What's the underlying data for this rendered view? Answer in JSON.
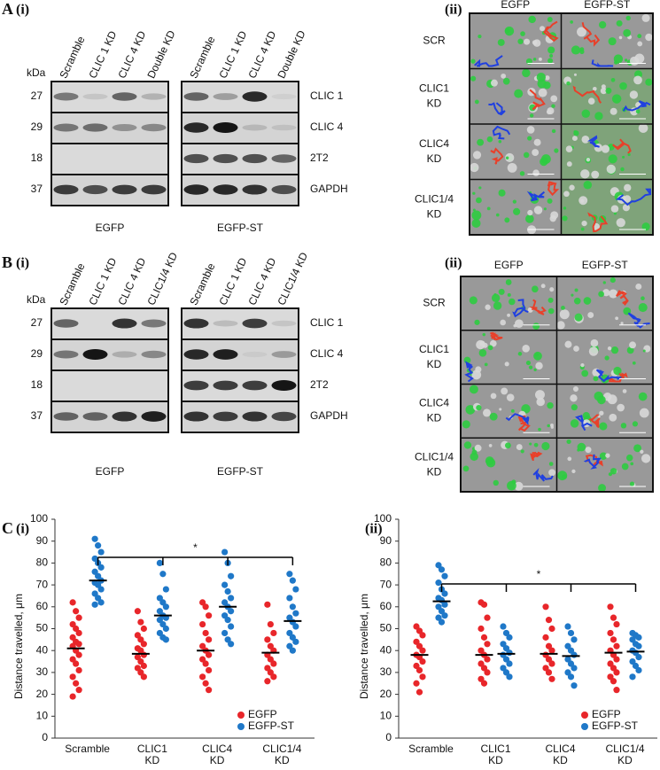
{
  "panels": {
    "A": {
      "label": "A",
      "i": "(i)",
      "ii": "(ii)",
      "blot": {
        "kda": "kDa",
        "markers": [
          27,
          29,
          18,
          37
        ],
        "proteins": [
          "CLIC 1",
          "CLIC 4",
          "2T2",
          "GAPDH"
        ],
        "groups": [
          {
            "name": "EGFP",
            "lanes": [
              "Scramble",
              "CLIC 1 KD",
              "CLIC 4 KD",
              "Double KD"
            ]
          },
          {
            "name": "EGFP-ST",
            "lanes": [
              "Scramble",
              "CLIC 1 KD",
              "CLIC 4 KD",
              "Double KD"
            ]
          }
        ]
      },
      "micrographs": {
        "columns": [
          "EGFP",
          "EGFP-ST"
        ],
        "rows": [
          [
            "SCR"
          ],
          [
            "CLIC1",
            "KD"
          ],
          [
            "CLIC4",
            "KD"
          ],
          [
            "CLIC1/4",
            "KD"
          ]
        ]
      }
    },
    "B": {
      "label": "B",
      "i": "(i)",
      "ii": "(ii)",
      "blot": {
        "kda": "kDa",
        "markers": [
          27,
          29,
          18,
          37
        ],
        "proteins": [
          "CLIC 1",
          "CLIC 4",
          "2T2",
          "GAPDH"
        ],
        "groups": [
          {
            "name": "EGFP",
            "lanes": [
              "Scramble",
              "CLIC 1 KD",
              "CLIC 4 KD",
              "CLIC1/4 KD"
            ]
          },
          {
            "name": "EGFP-ST",
            "lanes": [
              "Scramble",
              "CLIC 1 KD",
              "CLIC 4 KD",
              "CLIC1/4 KD"
            ]
          }
        ]
      },
      "micrographs": {
        "columns": [
          "EGFP",
          "EGFP-ST"
        ],
        "rows": [
          [
            "SCR"
          ],
          [
            "CLIC1",
            "KD"
          ],
          [
            "CLIC4",
            "KD"
          ],
          [
            "CLIC1/4",
            "KD"
          ]
        ]
      }
    },
    "C": {
      "label": "C"
    }
  },
  "chart_data": [
    {
      "type": "strip",
      "title": "(i)",
      "ylabel": "Distance travelled, μm",
      "significance": "*",
      "categories": [
        [
          "Scramble"
        ],
        [
          "CLIC1",
          "KD"
        ],
        [
          "CLIC4",
          "KD"
        ],
        [
          "CLIC1/4",
          "KD"
        ]
      ],
      "ylim": [
        0,
        100
      ],
      "yticks": [
        0,
        10,
        20,
        30,
        40,
        50,
        60,
        70,
        80,
        90,
        100
      ],
      "legend": "lower right",
      "series": [
        {
          "name": "EGFP",
          "color": "#e8262a",
          "means": [
            41,
            38.5,
            40,
            39
          ],
          "values": [
            [
              62,
              58,
              55,
              52,
              50,
              48,
              46,
              44,
              43,
              42,
              40,
              38,
              36,
              34,
              31,
              28,
              25,
              22,
              19
            ],
            [
              58,
              53,
              50,
              47,
              45,
              43,
              41,
              40,
              38,
              37,
              35,
              33,
              32,
              30,
              28
            ],
            [
              62,
              60,
              56,
              52,
              48,
              45,
              42,
              40,
              38,
              36,
              34,
              31,
              28,
              25,
              22
            ],
            [
              61,
              52,
              48,
              45,
              42,
              40,
              38,
              36,
              34,
              32,
              30,
              28,
              26
            ]
          ]
        },
        {
          "name": "EGFP-ST",
          "color": "#1f78c8",
          "means": [
            72,
            56,
            60,
            53.5
          ],
          "values": [
            [
              91,
              88,
              85,
              82,
              80,
              78,
              76,
              74,
              72,
              71,
              70,
              68,
              66,
              64,
              62,
              61
            ],
            [
              80,
              75,
              68,
              64,
              62,
              60,
              58,
              56,
              55,
              54,
              52,
              50,
              48,
              46,
              45
            ],
            [
              85,
              80,
              74,
              70,
              67,
              64,
              62,
              60,
              58,
              56,
              54,
              51,
              48,
              45,
              43
            ],
            [
              75,
              72,
              68,
              64,
              60,
              57,
              55,
              53,
              51,
              48,
              46,
              44,
              42,
              40
            ]
          ]
        }
      ]
    },
    {
      "type": "strip",
      "title": "(ii)",
      "ylabel": "Distance travelled, μm",
      "significance": "*",
      "categories": [
        [
          "Scramble"
        ],
        [
          "CLIC1",
          "KD"
        ],
        [
          "CLIC4",
          "KD"
        ],
        [
          "CLIC1/4",
          "KD"
        ]
      ],
      "ylim": [
        0,
        100
      ],
      "yticks": [
        0,
        10,
        20,
        30,
        40,
        50,
        60,
        70,
        80,
        90,
        100
      ],
      "legend": "lower right",
      "series": [
        {
          "name": "EGFP",
          "color": "#e8262a",
          "means": [
            38,
            38,
            38.5,
            39
          ],
          "values": [
            [
              51,
              49,
              47,
              44,
              42,
              40,
              38,
              37,
              35,
              33,
              31,
              28,
              25,
              21
            ],
            [
              62,
              61,
              55,
              50,
              46,
              43,
              40,
              38,
              36,
              34,
              32,
              30,
              27,
              25
            ],
            [
              60,
              54,
              50,
              46,
              42,
              40,
              38,
              36,
              34,
              32,
              30,
              27
            ],
            [
              60,
              55,
              52,
              48,
              45,
              42,
              40,
              38,
              36,
              34,
              32,
              30,
              28,
              26,
              22
            ]
          ]
        },
        {
          "name": "EGFP-ST",
          "color": "#1f78c8",
          "means": [
            62.5,
            38.5,
            37.5,
            39.5
          ],
          "values": [
            [
              79,
              77,
              74,
              71,
              68,
              66,
              64,
              63,
              61,
              60,
              58,
              56,
              55,
              53
            ],
            [
              51,
              48,
              46,
              43,
              41,
              39,
              38,
              36,
              34,
              32,
              30,
              28
            ],
            [
              51,
              48,
              45,
              42,
              40,
              38,
              36,
              34,
              32,
              30,
              28,
              24
            ],
            [
              48,
              47,
              46,
              45,
              43,
              42,
              40,
              39,
              37,
              35,
              33,
              31,
              28
            ]
          ]
        }
      ]
    }
  ]
}
